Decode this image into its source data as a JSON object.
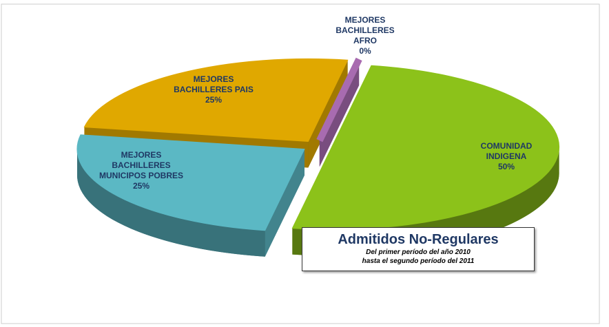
{
  "chart_data": {
    "type": "pie",
    "categories": [
      "COMUNIDAD INDIGENA",
      "MEJORES BACHILLERES MUNICIPOS POBRES",
      "MEJORES BACHILLERES PAIS",
      "MEJORES BACHILLERES AFRO"
    ],
    "values": [
      50,
      25,
      25,
      0
    ],
    "value_labels": [
      "50%",
      "25%",
      "25%",
      "0%"
    ],
    "colors": [
      "#8cc21a",
      "#5bb8c4",
      "#e0a800",
      "#a86bb0"
    ],
    "title": "Admitidos No-Regulares",
    "subtitle": [
      "Del primer período del año 2010",
      "hasta el segundo período del 2011"
    ]
  }
}
